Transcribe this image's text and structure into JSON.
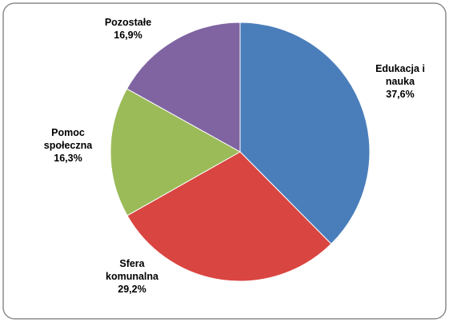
{
  "chart_data": {
    "type": "pie",
    "categories": [
      "Edukacja i nauka",
      "Sfera komunalna",
      "Pomoc społeczna",
      "Pozostałe"
    ],
    "values": [
      37.6,
      29.2,
      16.3,
      16.9
    ],
    "value_labels": [
      "37,6%",
      "29,2%",
      "16,3%",
      "16,9%"
    ],
    "colors": [
      "#4a7ebb",
      "#d94541",
      "#9bbb59",
      "#8064a2"
    ]
  }
}
